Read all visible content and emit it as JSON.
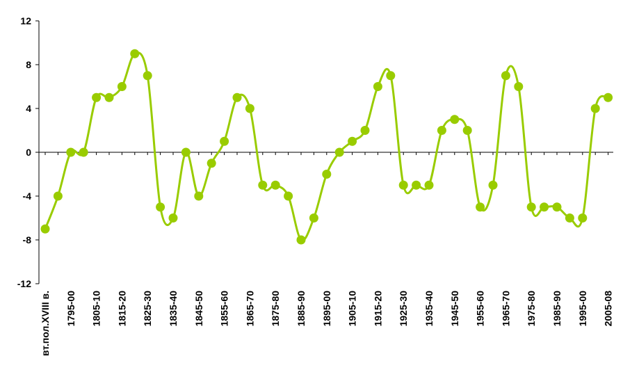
{
  "chart_data": {
    "type": "line",
    "title": "",
    "xlabel": "",
    "ylabel": "",
    "ylim": [
      -12,
      12
    ],
    "yticks": [
      -12,
      -8,
      -4,
      0,
      4,
      8,
      12
    ],
    "grid": false,
    "smooth": true,
    "line_color": "#99cc00",
    "marker_color": "#99cc00",
    "tick_labels": [
      "вт.пол.XVIII в.",
      "1795-00",
      "1805-10",
      "1815-20",
      "1825-30",
      "1835-40",
      "1845-50",
      "1855-60",
      "1865-70",
      "1875-80",
      "1885-90",
      "1895-00",
      "1905-10",
      "1915-20",
      "1925-30",
      "1935-40",
      "1945-50",
      "1955-60",
      "1965-70",
      "1975-80",
      "1985-90",
      "1995-00",
      "2005-08"
    ],
    "values": [
      -7,
      -4,
      0,
      0,
      5,
      5,
      6,
      9,
      7,
      -5,
      -6,
      0,
      -4,
      -1,
      1,
      5,
      4,
      -3,
      -3,
      -4,
      -8,
      -6,
      -2,
      0,
      1,
      2,
      6,
      7,
      -3,
      -3,
      -3,
      2,
      3,
      2,
      -5,
      -3,
      7,
      6,
      -5,
      -5,
      -5,
      -6,
      -6,
      4,
      5
    ]
  }
}
